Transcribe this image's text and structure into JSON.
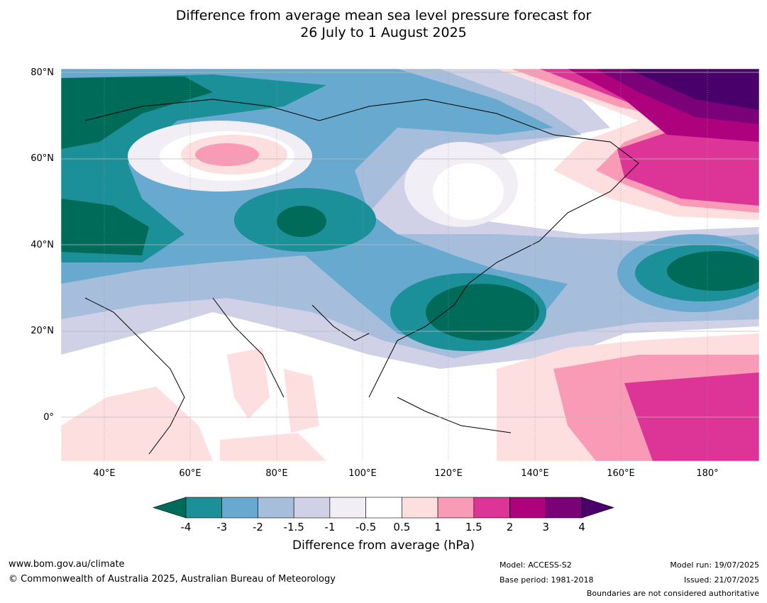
{
  "title_line1": "Difference from average mean sea level pressure forecast for",
  "title_line2": "26 July to 1 August 2025",
  "lat_labels": [
    "80°N",
    "60°N",
    "40°N",
    "20°N",
    "0°"
  ],
  "lon_labels": [
    "40°E",
    "60°E",
    "80°E",
    "100°E",
    "120°E",
    "140°E",
    "160°E",
    "180°"
  ],
  "colorbar": {
    "ticks": [
      "-4",
      "-3",
      "-2",
      "-1.5",
      "-1",
      "-0.5",
      "0.5",
      "1",
      "1.5",
      "2",
      "3",
      "4"
    ],
    "colors": [
      "#006b59",
      "#1b9098",
      "#67a9cf",
      "#a6bddb",
      "#d0d1e6",
      "#f1eef6",
      "#ffffff",
      "#fddfdf",
      "#f99ab7",
      "#dd3497",
      "#ae017e",
      "#7a0177",
      "#49006a"
    ],
    "title": "Difference from average (hPa)"
  },
  "footer": {
    "website": "www.bom.gov.au/climate",
    "copyright": "© Commonwealth of Australia 2025, Australian Bureau of Meteorology",
    "model": "Model: ACCESS-S2",
    "base_period": "Base period: 1981-2018",
    "model_run": "Model run: 19/07/2025",
    "issued": "Issued: 21/07/2025",
    "disclaimer": "Boundaries are not considered authoritative"
  }
}
